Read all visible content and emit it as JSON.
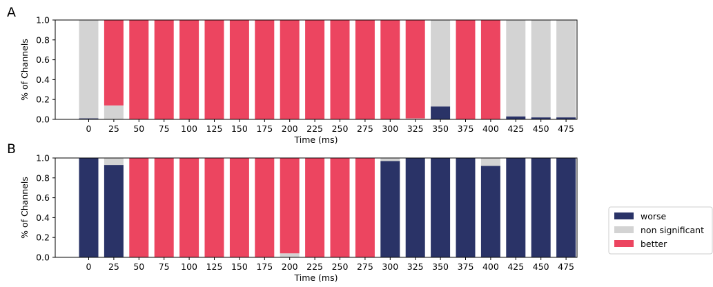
{
  "colors": {
    "worse": "#2a3367",
    "non_significant": "#d3d3d3",
    "better": "#ec4560"
  },
  "legend": {
    "placement": "center-right",
    "items": [
      {
        "key": "worse",
        "label": "worse"
      },
      {
        "key": "non_significant",
        "label": "non significant"
      },
      {
        "key": "better",
        "label": "better"
      }
    ]
  },
  "chart_data": [
    {
      "panel": "A",
      "type": "bar",
      "stacked": true,
      "title": "",
      "xlabel": "Time (ms)",
      "ylabel": "% of Channels",
      "ylim": [
        0,
        1
      ],
      "yticks": [
        "0.0",
        "0.2",
        "0.4",
        "0.6",
        "0.8",
        "1.0"
      ],
      "categories": [
        "0",
        "25",
        "50",
        "75",
        "100",
        "125",
        "150",
        "175",
        "200",
        "225",
        "250",
        "275",
        "300",
        "325",
        "350",
        "375",
        "400",
        "425",
        "450",
        "475"
      ],
      "series": [
        {
          "name": "worse",
          "values": [
            0.01,
            0,
            0,
            0,
            0,
            0,
            0,
            0,
            0,
            0,
            0,
            0,
            0,
            0,
            0.13,
            0,
            0,
            0.03,
            0.02,
            0.02
          ]
        },
        {
          "name": "non significant",
          "values": [
            0.99,
            0.14,
            0,
            0,
            0,
            0,
            0,
            0,
            0,
            0,
            0,
            0,
            0,
            0.01,
            0.87,
            0,
            0,
            0.97,
            0.98,
            0.98
          ]
        },
        {
          "name": "better",
          "values": [
            0,
            0.86,
            1,
            1,
            1,
            1,
            1,
            1,
            1,
            1,
            1,
            1,
            1,
            0.99,
            0,
            1,
            1,
            0,
            0,
            0
          ]
        }
      ]
    },
    {
      "panel": "B",
      "type": "bar",
      "stacked": true,
      "title": "",
      "xlabel": "Time (ms)",
      "ylabel": "% of Channels",
      "ylim": [
        0,
        1
      ],
      "yticks": [
        "0.0",
        "0.2",
        "0.4",
        "0.6",
        "0.8",
        "1.0"
      ],
      "categories": [
        "0",
        "25",
        "50",
        "75",
        "100",
        "125",
        "150",
        "175",
        "200",
        "225",
        "250",
        "275",
        "300",
        "325",
        "350",
        "375",
        "400",
        "425",
        "450",
        "475"
      ],
      "series": [
        {
          "name": "worse",
          "values": [
            1,
            0.93,
            0,
            0,
            0,
            0,
            0,
            0,
            0,
            0,
            0,
            0,
            0.97,
            1,
            1,
            1,
            0.92,
            1,
            1,
            1
          ]
        },
        {
          "name": "non significant",
          "values": [
            0,
            0.07,
            0,
            0,
            0,
            0,
            0,
            0,
            0.04,
            0,
            0,
            0,
            0.03,
            0,
            0,
            0,
            0.08,
            0,
            0,
            0
          ]
        },
        {
          "name": "better",
          "values": [
            0,
            0,
            1,
            1,
            1,
            1,
            1,
            1,
            0.96,
            1,
            1,
            1,
            0,
            0,
            0,
            0,
            0,
            0,
            0,
            0
          ]
        }
      ]
    }
  ]
}
